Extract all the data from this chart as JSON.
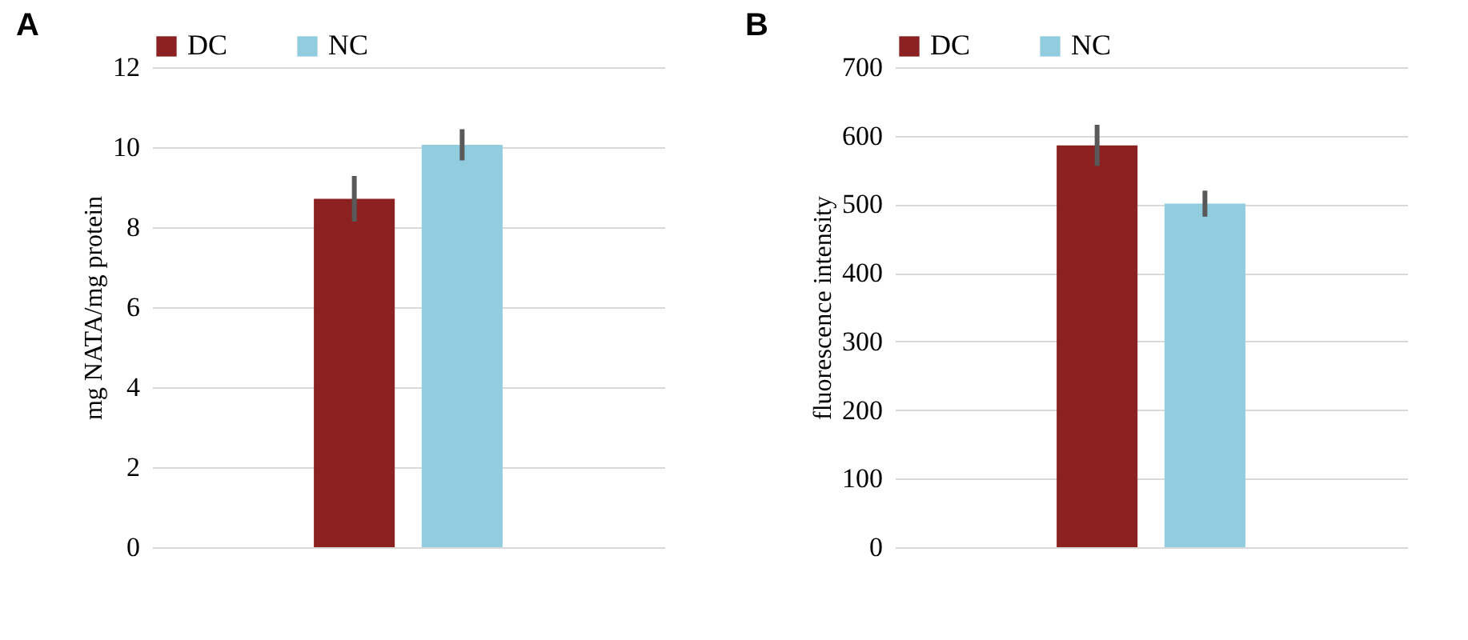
{
  "chart_data": [
    {
      "type": "bar",
      "title": "A",
      "ylabel": "mg NATA/mg protein",
      "categories": [
        null
      ],
      "series": [
        {
          "name": "DC",
          "color": "#8b2120",
          "values": [
            8.71
          ],
          "errors": [
            0.57
          ]
        },
        {
          "name": "NC",
          "color": "#92cddf",
          "values": [
            10.06
          ],
          "errors": [
            0.39
          ]
        }
      ],
      "ylim": [
        0,
        12
      ],
      "yticks": [
        0,
        2,
        4,
        6,
        8,
        10,
        12
      ],
      "grid": "y",
      "legend": "top",
      "tick_labels": "y"
    },
    {
      "type": "bar",
      "title": "B",
      "ylabel": "fluorescence intensity",
      "categories": [
        null
      ],
      "series": [
        {
          "name": "DC",
          "color": "#8b2120",
          "values": [
            586
          ],
          "errors": [
            30
          ]
        },
        {
          "name": "NC",
          "color": "#92cddf",
          "values": [
            501
          ],
          "errors": [
            19
          ]
        }
      ],
      "ylim": [
        0,
        700
      ],
      "yticks": [
        0,
        100,
        200,
        300,
        400,
        500,
        600,
        700
      ],
      "grid": "y",
      "legend": "top",
      "tick_labels": "y"
    }
  ]
}
